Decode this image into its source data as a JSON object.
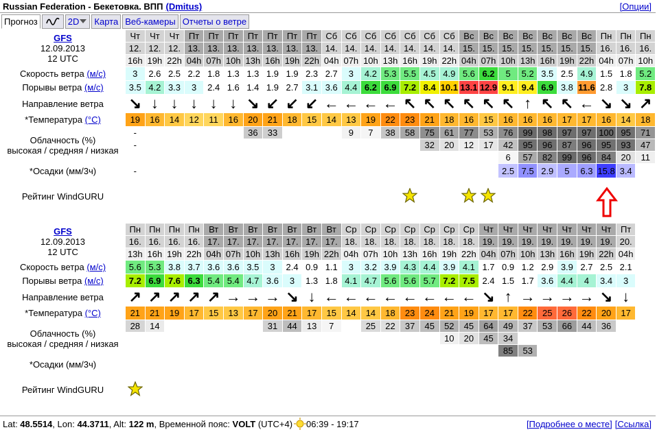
{
  "header": {
    "location": "Russian Federation - Бекетовка. ВПП",
    "user": "(Dmitus)",
    "options": "[Опции]"
  },
  "tabs": [
    "Прогноз",
    "2D",
    "Карта",
    "Веб-камеры",
    "Отчеты о ветре"
  ],
  "labels": {
    "speed": {
      "text": "Скорость ветра",
      "unit": "(м/с)"
    },
    "gusts": {
      "text": "Порывы ветра",
      "unit": "(м/с)"
    },
    "direction": {
      "text": "Направление ветра"
    },
    "temperature": {
      "text": "*Температура",
      "unit": "(°C)"
    },
    "cloud": {
      "text": "Облачность (%)",
      "sub": "высокая / средняя / низкая"
    },
    "precipitation": {
      "text": "*Осадки (мм/3ч)"
    },
    "rating": {
      "text": "Рейтинг WindGURU"
    }
  },
  "blocks": [
    {
      "model": "GFS",
      "date": "12.09.2013",
      "run": "12 UTC",
      "days": [
        "Чт",
        "Чт",
        "Чт",
        "Пт",
        "Пт",
        "Пт",
        "Пт",
        "Пт",
        "Пт",
        "Пт",
        "Сб",
        "Сб",
        "Сб",
        "Сб",
        "Сб",
        "Сб",
        "Сб",
        "Вс",
        "Вс",
        "Вс",
        "Вс",
        "Вс",
        "Вс",
        "Вс",
        "Пн",
        "Пн",
        "Пн"
      ],
      "dates": [
        "12.",
        "12.",
        "12.",
        "13.",
        "13.",
        "13.",
        "13.",
        "13.",
        "13.",
        "13.",
        "14.",
        "14.",
        "14.",
        "14.",
        "14.",
        "14.",
        "14.",
        "15.",
        "15.",
        "15.",
        "15.",
        "15.",
        "15.",
        "15.",
        "16.",
        "16.",
        "16."
      ],
      "hours": [
        "16h",
        "19h",
        "22h",
        "04h",
        "07h",
        "10h",
        "13h",
        "16h",
        "19h",
        "22h",
        "04h",
        "07h",
        "10h",
        "13h",
        "16h",
        "19h",
        "22h",
        "04h",
        "07h",
        "10h",
        "13h",
        "16h",
        "19h",
        "22h",
        "04h",
        "07h",
        "10h"
      ],
      "speed": [
        3,
        2.6,
        2.5,
        2.2,
        1.8,
        1.3,
        1.3,
        1.9,
        1.9,
        2.3,
        2.7,
        3,
        4.2,
        5.3,
        5.5,
        4.5,
        4.9,
        5.6,
        6.2,
        5,
        5.2,
        3.5,
        2.5,
        4.9,
        1.5,
        1.8,
        5.2
      ],
      "gusts": [
        3.5,
        4.2,
        3.3,
        3,
        2.4,
        1.6,
        1.4,
        1.9,
        2.7,
        3.1,
        3.6,
        4.4,
        6.2,
        6.9,
        7.2,
        8.4,
        10.1,
        13.1,
        12.9,
        9.1,
        9.4,
        6.9,
        3.8,
        11.6,
        2.8,
        3,
        7.8
      ],
      "direction": [
        "↘",
        "↓",
        "↓",
        "↓",
        "↓",
        "↓",
        "↘",
        "↙",
        "↙",
        "↙",
        "←",
        "←",
        "←",
        "←",
        "↖",
        "↖",
        "↖",
        "↖",
        "↖",
        "↖",
        "↑",
        "↖",
        "↖",
        "←",
        "↘",
        "↘",
        "↗"
      ],
      "temperature": [
        19,
        16,
        14,
        12,
        11,
        16,
        20,
        21,
        18,
        15,
        14,
        13,
        19,
        22,
        23,
        21,
        18,
        16,
        15,
        16,
        16,
        16,
        17,
        17,
        16,
        14,
        18
      ],
      "cloud_high": [
        "-",
        null,
        null,
        null,
        null,
        null,
        36,
        33,
        null,
        null,
        null,
        9,
        7,
        38,
        58,
        75,
        61,
        77,
        53,
        76,
        99,
        98,
        97,
        97,
        100,
        95,
        71
      ],
      "cloud_mid": [
        "-",
        null,
        null,
        null,
        null,
        null,
        null,
        null,
        null,
        null,
        null,
        null,
        null,
        null,
        null,
        32,
        20,
        12,
        17,
        42,
        95,
        96,
        87,
        96,
        95,
        93,
        47
      ],
      "cloud_low": [
        null,
        null,
        null,
        null,
        null,
        null,
        null,
        null,
        null,
        null,
        null,
        null,
        null,
        null,
        null,
        null,
        null,
        null,
        null,
        6,
        57,
        82,
        99,
        96,
        84,
        20,
        11
      ],
      "precipitation": [
        "-",
        null,
        null,
        null,
        null,
        null,
        null,
        null,
        null,
        null,
        null,
        null,
        null,
        null,
        null,
        null,
        null,
        null,
        null,
        2.5,
        7.5,
        2.9,
        5,
        6.3,
        15.8,
        3.4,
        null
      ],
      "rating": [
        null,
        null,
        null,
        null,
        null,
        null,
        null,
        null,
        null,
        null,
        null,
        null,
        null,
        null,
        1,
        null,
        null,
        1,
        1,
        null,
        null,
        null,
        null,
        null,
        null,
        null,
        null
      ]
    },
    {
      "model": "GFS",
      "date": "12.09.2013",
      "run": "12 UTC",
      "days": [
        "Пн",
        "Пн",
        "Пн",
        "Пн",
        "Вт",
        "Вт",
        "Вт",
        "Вт",
        "Вт",
        "Вт",
        "Вт",
        "Ср",
        "Ср",
        "Ср",
        "Ср",
        "Ср",
        "Ср",
        "Ср",
        "Чт",
        "Чт",
        "Чт",
        "Чт",
        "Чт",
        "Чт",
        "Чт",
        "Пт"
      ],
      "dates": [
        "16.",
        "16.",
        "16.",
        "16.",
        "17.",
        "17.",
        "17.",
        "17.",
        "17.",
        "17.",
        "17.",
        "18.",
        "18.",
        "18.",
        "18.",
        "18.",
        "18.",
        "18.",
        "19.",
        "19.",
        "19.",
        "19.",
        "19.",
        "19.",
        "19.",
        "20."
      ],
      "hours": [
        "13h",
        "16h",
        "19h",
        "22h",
        "04h",
        "07h",
        "10h",
        "13h",
        "16h",
        "19h",
        "22h",
        "04h",
        "07h",
        "10h",
        "13h",
        "16h",
        "19h",
        "22h",
        "04h",
        "07h",
        "10h",
        "13h",
        "16h",
        "19h",
        "22h",
        "04h"
      ],
      "speed": [
        5.6,
        5.3,
        3.8,
        3.7,
        3.6,
        3.6,
        3.5,
        3,
        2.4,
        0.9,
        1.1,
        3,
        3.2,
        3.9,
        4.3,
        4.4,
        3.9,
        4.1,
        1.7,
        0.9,
        1.2,
        2.9,
        3.9,
        2.7,
        2.5,
        2.1
      ],
      "gusts": [
        7.2,
        6.9,
        7.6,
        6.3,
        5.4,
        5.4,
        4.7,
        3.6,
        3,
        1.3,
        1.8,
        4.1,
        4.7,
        5.6,
        5.6,
        5.7,
        7.2,
        7.5,
        2.4,
        1.5,
        1.7,
        3.6,
        4.4,
        4,
        3.4,
        3
      ],
      "direction": [
        "↗",
        "↗",
        "↗",
        "↗",
        "↗",
        "→",
        "→",
        "→",
        "↘",
        "↓",
        "←",
        "←",
        "←",
        "←",
        "←",
        "←",
        "←",
        "←",
        "↘",
        "↑",
        "→",
        "→",
        "→",
        "→",
        "↘",
        "↓"
      ],
      "temperature": [
        21,
        21,
        19,
        17,
        15,
        13,
        17,
        20,
        21,
        17,
        15,
        14,
        14,
        18,
        23,
        24,
        21,
        19,
        17,
        17,
        22,
        25,
        26,
        22,
        20,
        17
      ],
      "cloud_high": [
        28,
        14,
        null,
        null,
        null,
        null,
        null,
        31,
        44,
        13,
        7,
        null,
        25,
        22,
        37,
        45,
        52,
        45,
        64,
        49,
        37,
        53,
        66,
        44,
        36,
        null
      ],
      "cloud_mid": [
        null,
        null,
        null,
        null,
        null,
        null,
        null,
        null,
        null,
        null,
        null,
        null,
        null,
        null,
        null,
        null,
        10,
        20,
        45,
        34,
        null,
        null,
        null,
        null,
        null,
        null
      ],
      "cloud_low": [
        null,
        null,
        null,
        null,
        null,
        null,
        null,
        null,
        null,
        null,
        null,
        null,
        null,
        null,
        null,
        null,
        null,
        null,
        null,
        85,
        53,
        null,
        null,
        null,
        null,
        null
      ],
      "precipitation": [
        null,
        null,
        null,
        null,
        null,
        null,
        null,
        null,
        null,
        null,
        null,
        null,
        null,
        null,
        null,
        null,
        null,
        null,
        null,
        null,
        null,
        null,
        null,
        null,
        null,
        null
      ],
      "rating": [
        1,
        null,
        null,
        null,
        null,
        null,
        null,
        null,
        null,
        null,
        null,
        null,
        null,
        null,
        null,
        null,
        null,
        null,
        null,
        null,
        null,
        null,
        null,
        null,
        null,
        null
      ]
    }
  ],
  "footer": {
    "info": [
      {
        "text": "Lat: "
      },
      {
        "text": "48.5514",
        "bold": true
      },
      {
        "text": ", Lon: "
      },
      {
        "text": "44.3711",
        "bold": true
      },
      {
        "text": ", Alt: "
      },
      {
        "text": "122 m",
        "bold": true
      },
      {
        "text": ", Временной пояс: "
      },
      {
        "text": "VOLT",
        "bold": true
      },
      {
        "text": " (UTC+4)"
      }
    ],
    "sun": "06:39 - 19:17",
    "links": [
      "[Подробнее о месте]",
      "[Ссылка]"
    ]
  }
}
